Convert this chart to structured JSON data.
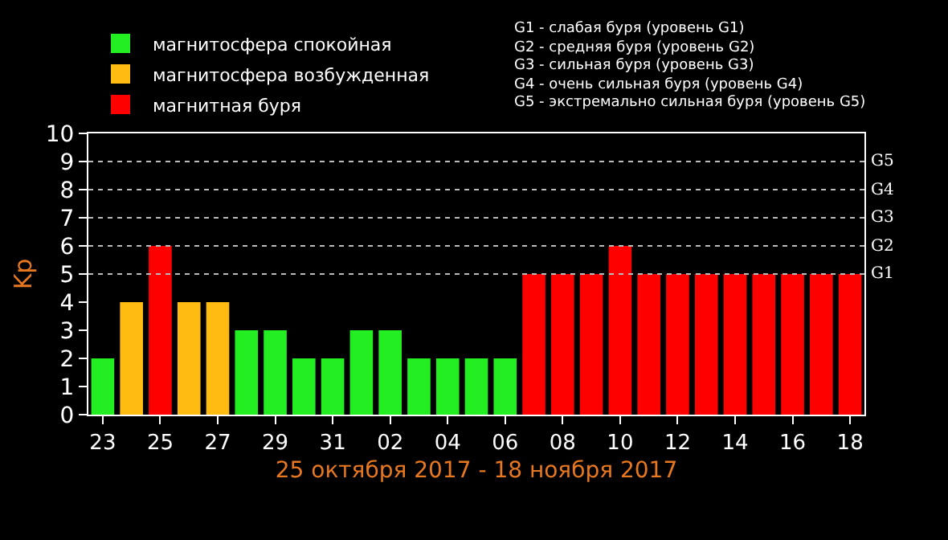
{
  "chart_data": {
    "type": "bar",
    "ylabel": "Kp",
    "xlabel": "25 октября 2017 - 18 ноября 2017",
    "categories": [
      "23",
      null,
      "25",
      null,
      "27",
      null,
      "29",
      null,
      "31",
      null,
      "02",
      null,
      "04",
      null,
      "06",
      null,
      "08",
      null,
      "10",
      null,
      "12",
      null,
      "14",
      null,
      "16",
      null,
      "18"
    ],
    "series": [
      {
        "name": "магнитосфера спокойная",
        "color": "#22ee22",
        "values": [
          2,
          null,
          null,
          null,
          null,
          3,
          3,
          2,
          2,
          3,
          3,
          2,
          2,
          2,
          2,
          null,
          null,
          null,
          null,
          null,
          null,
          null,
          null,
          null,
          null,
          null,
          null
        ]
      },
      {
        "name": "магнитосфера возбужденная",
        "color": "#ffbb11",
        "values": [
          null,
          4,
          null,
          4,
          4,
          null,
          null,
          null,
          null,
          null,
          null,
          null,
          null,
          null,
          null,
          null,
          null,
          null,
          null,
          null,
          null,
          null,
          null,
          null,
          null,
          null,
          null
        ]
      },
      {
        "name": "магнитная буря",
        "color": "#ff0000",
        "values": [
          null,
          null,
          6,
          null,
          null,
          null,
          null,
          null,
          null,
          null,
          null,
          null,
          null,
          null,
          null,
          5,
          5,
          5,
          6,
          5,
          5,
          5,
          5,
          5,
          5,
          5,
          5
        ]
      }
    ],
    "ylim": [
      0,
      10
    ],
    "yticks": [
      0,
      1,
      2,
      3,
      4,
      5,
      6,
      7,
      8,
      9,
      10
    ],
    "ref_lines": [
      {
        "axis": "y",
        "value": 5,
        "label": "G1",
        "line_style": "dotted"
      },
      {
        "axis": "y",
        "value": 6,
        "label": "G2",
        "line_style": "dotted"
      },
      {
        "axis": "y",
        "value": 7,
        "label": "G3",
        "line_style": "dotted"
      },
      {
        "axis": "y",
        "value": 8,
        "label": "G4",
        "line_style": "dotted"
      },
      {
        "axis": "y",
        "value": 9,
        "label": "G5",
        "line_style": "dotted"
      }
    ],
    "legend": "top left",
    "annotations": [
      "G1 - слабая буря (уровень G1)",
      "G2 - средняя буря (уровень G2)",
      "G3 - сильная буря (уровень G3)",
      "G4 - очень сильная буря (уровень G4)",
      "G5 - экстремально сильная буря (уровень G5)"
    ]
  }
}
